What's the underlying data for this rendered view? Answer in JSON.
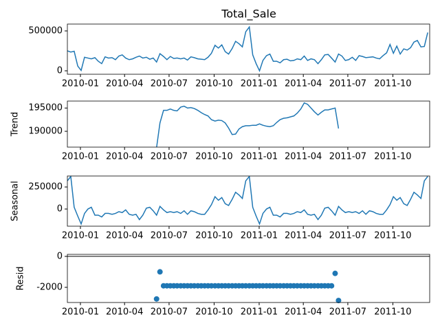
{
  "chart_data": {
    "type": "seasonal-decompose",
    "title": "Total_Sale",
    "x": [
      2009.927,
      2009.946,
      2009.965,
      2009.985,
      2010.004,
      2010.023,
      2010.042,
      2010.061,
      2010.081,
      2010.1,
      2010.119,
      2010.138,
      2010.157,
      2010.177,
      2010.196,
      2010.215,
      2010.234,
      2010.253,
      2010.273,
      2010.292,
      2010.311,
      2010.33,
      2010.349,
      2010.369,
      2010.388,
      2010.407,
      2010.426,
      2010.445,
      2010.465,
      2010.484,
      2010.503,
      2010.522,
      2010.541,
      2010.561,
      2010.58,
      2010.599,
      2010.618,
      2010.637,
      2010.657,
      2010.676,
      2010.695,
      2010.714,
      2010.733,
      2010.753,
      2010.772,
      2010.791,
      2010.81,
      2010.829,
      2010.849,
      2010.868,
      2010.887,
      2010.906,
      2010.925,
      2010.945,
      2010.964,
      2010.983,
      2011.002,
      2011.021,
      2011.041,
      2011.06,
      2011.079,
      2011.098,
      2011.117,
      2011.137,
      2011.156,
      2011.175,
      2011.194,
      2011.213,
      2011.233,
      2011.252,
      2011.271,
      2011.29,
      2011.309,
      2011.329,
      2011.348,
      2011.367,
      2011.386,
      2011.405,
      2011.425,
      2011.444,
      2011.463,
      2011.482,
      2011.501,
      2011.521,
      2011.54,
      2011.559,
      2011.578,
      2011.597,
      2011.617,
      2011.636,
      2011.655,
      2011.674,
      2011.693,
      2011.713,
      2011.732,
      2011.751,
      2011.77,
      2011.789,
      2011.809,
      2011.828,
      2011.847,
      2011.866,
      2011.885,
      2011.905,
      2011.924,
      2011.943
    ],
    "xlim": [
      2009.927,
      2011.954
    ],
    "xticks": [
      {
        "value": 2010.0,
        "label": "2010-01"
      },
      {
        "value": 2010.247,
        "label": "2010-04"
      },
      {
        "value": 2010.496,
        "label": "2010-07"
      },
      {
        "value": 2010.748,
        "label": "2010-10"
      },
      {
        "value": 2011.0,
        "label": "2011-01"
      },
      {
        "value": 2011.247,
        "label": "2011-04"
      },
      {
        "value": 2011.496,
        "label": "2011-07"
      },
      {
        "value": 2011.748,
        "label": "2011-10"
      }
    ],
    "panels": [
      {
        "type": "line",
        "color": "#1f77b4",
        "ylim": [
          -43000,
          586000
        ],
        "yticks": [
          0,
          500000
        ],
        "values": [
          250000,
          235000,
          245000,
          60000,
          5000,
          170000,
          160000,
          150000,
          165000,
          120000,
          90000,
          175000,
          160000,
          165000,
          140000,
          185000,
          200000,
          160000,
          140000,
          150000,
          170000,
          185000,
          160000,
          170000,
          145000,
          160000,
          110000,
          215000,
          180000,
          140000,
          180000,
          155000,
          160000,
          150000,
          160000,
          135000,
          175000,
          165000,
          150000,
          145000,
          140000,
          170000,
          220000,
          320000,
          285000,
          325000,
          240000,
          210000,
          280000,
          370000,
          340000,
          300000,
          490000,
          550000,
          200000,
          90000,
          0,
          130000,
          190000,
          210000,
          120000,
          120000,
          100000,
          140000,
          145000,
          125000,
          130000,
          150000,
          140000,
          185000,
          130000,
          150000,
          140000,
          90000,
          140000,
          200000,
          205000,
          160000,
          110000,
          210000,
          185000,
          130000,
          140000,
          170000,
          130000,
          190000,
          180000,
          165000,
          170000,
          175000,
          160000,
          150000,
          190000,
          225000,
          330000,
          220000,
          310000,
          210000,
          275000,
          260000,
          290000,
          360000,
          380000,
          300000,
          305000,
          480000
        ]
      },
      {
        "type": "line",
        "color": "#1f77b4",
        "ylabel": "Trend",
        "ylim": [
          186600,
          196500
        ],
        "yticks": [
          190000,
          195000
        ],
        "values": [
          null,
          null,
          null,
          null,
          null,
          null,
          null,
          null,
          null,
          null,
          null,
          null,
          null,
          null,
          null,
          null,
          null,
          null,
          null,
          null,
          null,
          null,
          null,
          null,
          null,
          null,
          186500,
          191800,
          194500,
          194500,
          194800,
          194500,
          194400,
          195200,
          195400,
          195000,
          195100,
          194900,
          194500,
          194000,
          193600,
          193300,
          192500,
          192200,
          192400,
          192300,
          191800,
          190700,
          189300,
          189400,
          190500,
          191000,
          191200,
          191200,
          191300,
          191300,
          191600,
          191300,
          191100,
          191000,
          191200,
          191900,
          192500,
          192800,
          192900,
          193100,
          193300,
          193900,
          194800,
          196100,
          195800,
          195000,
          194200,
          193500,
          194100,
          194600,
          194600,
          194800,
          195000,
          190600,
          null,
          null,
          null,
          null,
          null,
          null,
          null,
          null,
          null,
          null,
          null,
          null,
          null,
          null,
          null,
          null,
          null,
          null,
          null,
          null,
          null,
          null,
          null,
          null,
          null,
          null
        ]
      },
      {
        "type": "line",
        "color": "#1f77b4",
        "ylabel": "Seasonal",
        "ylim": [
          -195000,
          375000
        ],
        "yticks": [
          0,
          250000
        ],
        "values": [
          320000,
          370000,
          20000,
          -80000,
          -170000,
          -50000,
          0,
          20000,
          -70000,
          -70000,
          -90000,
          -50000,
          -50000,
          -60000,
          -50000,
          -30000,
          -40000,
          -10000,
          -60000,
          -70000,
          -60000,
          -120000,
          -70000,
          10000,
          20000,
          -20000,
          -70000,
          30000,
          -10000,
          -40000,
          -30000,
          -40000,
          -30000,
          -50000,
          -20000,
          -60000,
          -20000,
          -30000,
          -50000,
          -60000,
          -60000,
          -10000,
          50000,
          140000,
          100000,
          130000,
          60000,
          40000,
          110000,
          190000,
          160000,
          120000,
          320000,
          370000,
          20000,
          -80000,
          -170000,
          -50000,
          0,
          20000,
          -70000,
          -70000,
          -90000,
          -50000,
          -50000,
          -60000,
          -50000,
          -30000,
          -40000,
          -10000,
          -60000,
          -70000,
          -60000,
          -120000,
          -70000,
          10000,
          20000,
          -20000,
          -70000,
          30000,
          -10000,
          -40000,
          -30000,
          -40000,
          -30000,
          -50000,
          -20000,
          -60000,
          -20000,
          -30000,
          -50000,
          -60000,
          -60000,
          -10000,
          50000,
          140000,
          100000,
          130000,
          60000,
          40000,
          110000,
          190000,
          160000,
          120000,
          320000,
          370000
        ]
      },
      {
        "type": "scatter",
        "color": "#1f77b4",
        "ylabel": "Resid",
        "ylim": [
          -2980,
          130
        ],
        "yticks": [
          -2000,
          0
        ],
        "values": [
          null,
          null,
          null,
          null,
          null,
          null,
          null,
          null,
          null,
          null,
          null,
          null,
          null,
          null,
          null,
          null,
          null,
          null,
          null,
          null,
          null,
          null,
          null,
          null,
          null,
          null,
          -2750,
          -1000,
          -1900,
          -1900,
          -1900,
          -1900,
          -1900,
          -1900,
          -1900,
          -1900,
          -1900,
          -1900,
          -1900,
          -1900,
          -1900,
          -1900,
          -1900,
          -1900,
          -1900,
          -1900,
          -1900,
          -1900,
          -1900,
          -1900,
          -1900,
          -1900,
          -1900,
          -1900,
          -1900,
          -1900,
          -1900,
          -1900,
          -1900,
          -1900,
          -1900,
          -1900,
          -1900,
          -1900,
          -1900,
          -1900,
          -1900,
          -1900,
          -1900,
          -1900,
          -1900,
          -1900,
          -1900,
          -1900,
          -1900,
          -1900,
          -1900,
          -1900,
          -1100,
          -2850,
          null,
          null,
          null,
          null,
          null,
          null,
          null,
          null,
          null,
          null,
          null,
          null,
          null,
          null,
          null,
          null,
          null,
          null,
          null,
          null,
          null,
          null,
          null,
          null,
          null,
          null
        ]
      }
    ]
  }
}
